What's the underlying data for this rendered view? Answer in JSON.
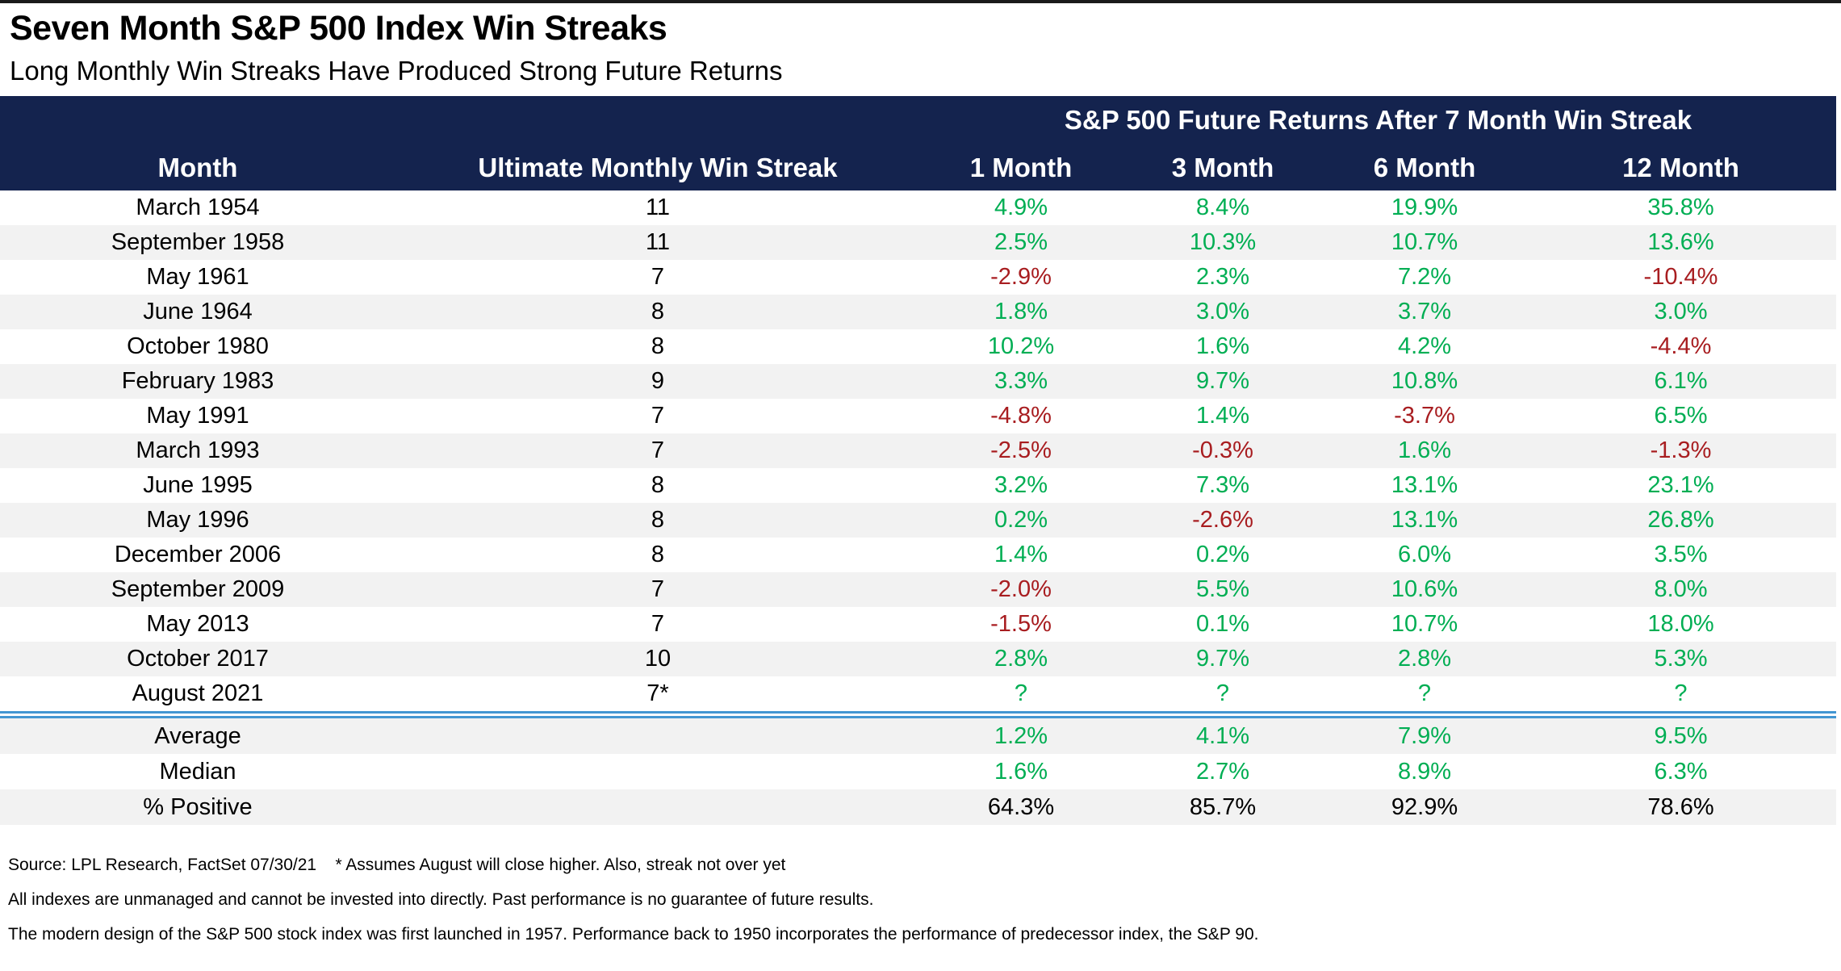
{
  "page": {
    "title": "Seven Month S&P 500 Index Win Streaks",
    "subtitle": "Long Monthly Win Streaks Have Produced Strong Future Returns"
  },
  "colors": {
    "header_bg": "#14234E",
    "positive": "#00AE53",
    "negative": "#A81D20",
    "row_alt": "#F2F2F2",
    "separator_blue": "#4396D2"
  },
  "chart_data": {
    "type": "table",
    "title": "Seven Month S&P 500 Index Win Streaks",
    "subtitle": "Long Monthly Win Streaks Have Produced Strong Future Returns",
    "group_header": "S&P 500 Future Returns After 7 Month Win Streak",
    "columns": [
      "Month",
      "Ultimate Monthly Win Streak",
      "1 Month",
      "3 Month",
      "6 Month",
      "12 Month"
    ],
    "rows": [
      {
        "month": "March 1954",
        "streak": "11",
        "returns": [
          "4.9%",
          "8.4%",
          "19.9%",
          "35.8%"
        ]
      },
      {
        "month": "September 1958",
        "streak": "11",
        "returns": [
          "2.5%",
          "10.3%",
          "10.7%",
          "13.6%"
        ]
      },
      {
        "month": "May 1961",
        "streak": "7",
        "returns": [
          "-2.9%",
          "2.3%",
          "7.2%",
          "-10.4%"
        ]
      },
      {
        "month": "June 1964",
        "streak": "8",
        "returns": [
          "1.8%",
          "3.0%",
          "3.7%",
          "3.0%"
        ]
      },
      {
        "month": "October 1980",
        "streak": "8",
        "returns": [
          "10.2%",
          "1.6%",
          "4.2%",
          "-4.4%"
        ]
      },
      {
        "month": "February 1983",
        "streak": "9",
        "returns": [
          "3.3%",
          "9.7%",
          "10.8%",
          "6.1%"
        ]
      },
      {
        "month": "May 1991",
        "streak": "7",
        "returns": [
          "-4.8%",
          "1.4%",
          "-3.7%",
          "6.5%"
        ]
      },
      {
        "month": "March 1993",
        "streak": "7",
        "returns": [
          "-2.5%",
          "-0.3%",
          "1.6%",
          "-1.3%"
        ]
      },
      {
        "month": "June 1995",
        "streak": "8",
        "returns": [
          "3.2%",
          "7.3%",
          "13.1%",
          "23.1%"
        ]
      },
      {
        "month": "May 1996",
        "streak": "8",
        "returns": [
          "0.2%",
          "-2.6%",
          "13.1%",
          "26.8%"
        ]
      },
      {
        "month": "December 2006",
        "streak": "8",
        "returns": [
          "1.4%",
          "0.2%",
          "6.0%",
          "3.5%"
        ]
      },
      {
        "month": "September 2009",
        "streak": "7",
        "returns": [
          "-2.0%",
          "5.5%",
          "10.6%",
          "8.0%"
        ]
      },
      {
        "month": "May 2013",
        "streak": "7",
        "returns": [
          "-1.5%",
          "0.1%",
          "10.7%",
          "18.0%"
        ]
      },
      {
        "month": "October 2017",
        "streak": "10",
        "returns": [
          "2.8%",
          "9.7%",
          "2.8%",
          "5.3%"
        ]
      },
      {
        "month": "August 2021",
        "streak": "7*",
        "returns": [
          "?",
          "?",
          "?",
          "?"
        ]
      }
    ],
    "summary_rows": [
      {
        "label": "Average",
        "values": [
          "1.2%",
          "4.1%",
          "7.9%",
          "9.5%"
        ],
        "style": "returns"
      },
      {
        "label": "Median",
        "values": [
          "1.6%",
          "2.7%",
          "8.9%",
          "6.3%"
        ],
        "style": "returns"
      },
      {
        "label": "% Positive",
        "values": [
          "64.3%",
          "85.7%",
          "92.9%",
          "78.6%"
        ],
        "style": "plain"
      }
    ]
  },
  "footer": {
    "line1": "Source: LPL Research, FactSet 07/30/21    * Assumes August will close higher. Also, streak not over yet",
    "line2": "All indexes are unmanaged and cannot be invested into directly. Past performance is no guarantee of future results.",
    "line3": "The modern design of the S&P 500 stock index was first launched in 1957. Performance back to 1950 incorporates the performance of predecessor index, the S&P 90."
  }
}
